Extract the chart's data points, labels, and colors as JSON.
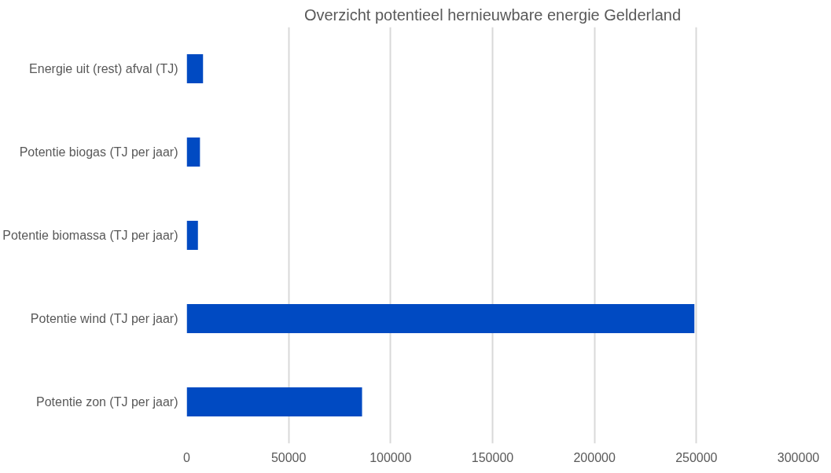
{
  "chart_data": {
    "type": "bar",
    "orientation": "horizontal",
    "title": "Overzicht potentieel hernieuwbare energie Gelderland",
    "categories": [
      "Energie uit (rest) afval (TJ)",
      "Potentie biogas (TJ per jaar)",
      "Potentie biomassa (TJ per jaar)",
      "Potentie wind (TJ per jaar)",
      "Potentie zon (TJ per jaar)"
    ],
    "values": [
      8000,
      6500,
      5500,
      249000,
      86000
    ],
    "color": "#004ac2",
    "xlim": [
      0,
      300000
    ],
    "xticks": [
      0,
      50000,
      100000,
      150000,
      200000,
      250000,
      300000
    ],
    "grid": "x"
  }
}
